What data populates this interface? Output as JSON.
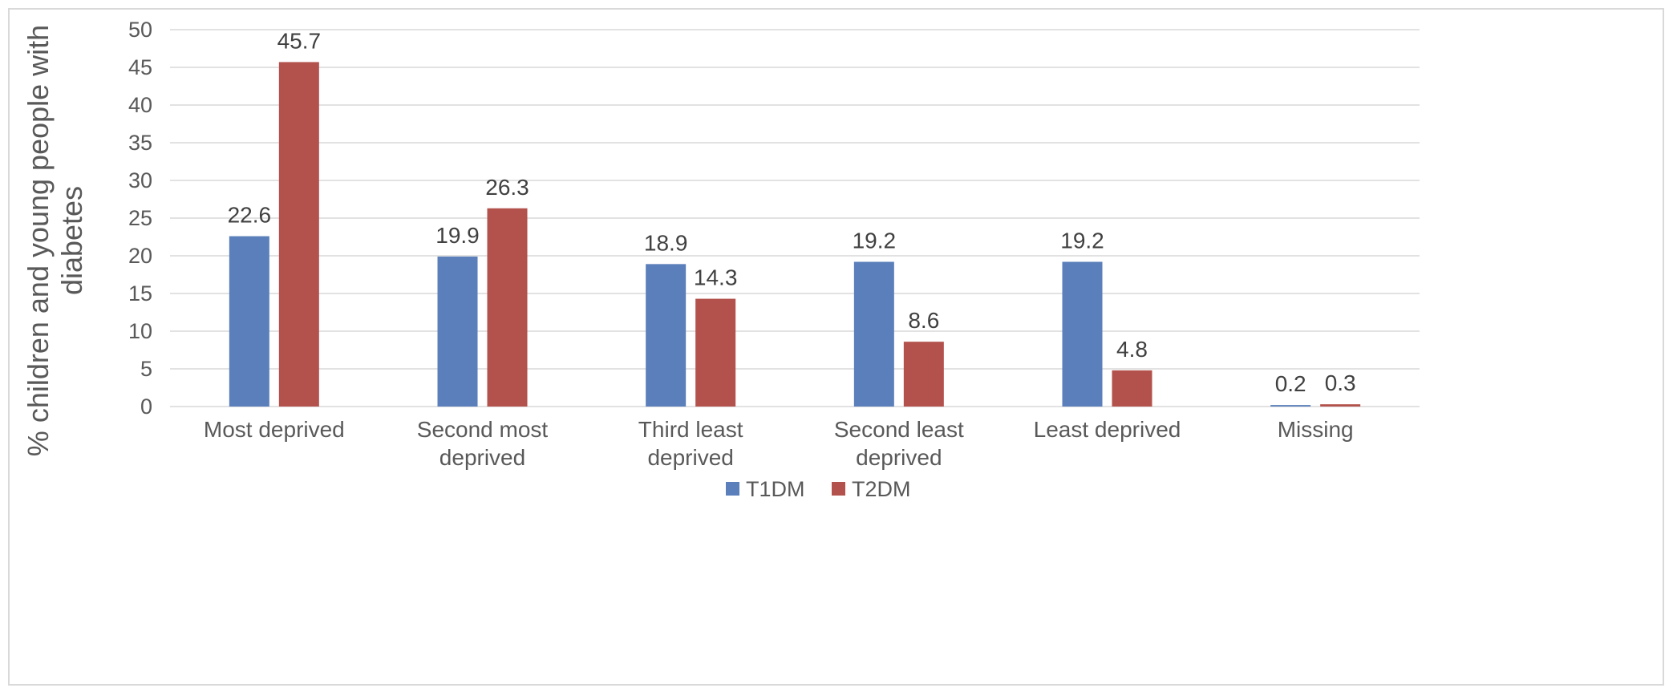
{
  "chart_data": {
    "type": "bar",
    "categories": [
      [
        "Most deprived"
      ],
      [
        "Second most",
        "deprived"
      ],
      [
        "Third least",
        "deprived"
      ],
      [
        "Second least",
        "deprived"
      ],
      [
        "Least deprived"
      ],
      [
        "Missing"
      ]
    ],
    "series": [
      {
        "name": "T1DM",
        "color": "#5a7fba",
        "values": [
          22.6,
          19.9,
          18.9,
          19.2,
          19.2,
          0.2
        ],
        "labels": [
          "22.6",
          "19.9",
          "18.9",
          "19.2",
          "19.2",
          "0.2"
        ]
      },
      {
        "name": "T2DM",
        "color": "#b3524c",
        "values": [
          45.7,
          26.3,
          14.3,
          8.6,
          4.8,
          0.3
        ],
        "labels": [
          "45.7",
          "26.3",
          "14.3",
          "8.6",
          "4.8",
          "0.3"
        ]
      }
    ],
    "title": "",
    "xlabel": "",
    "ylabel": [
      "% children and young people with",
      "diabetes"
    ],
    "ylim": [
      0,
      50
    ],
    "yticks": [
      0,
      5,
      10,
      15,
      20,
      25,
      30,
      35,
      40,
      45,
      50
    ],
    "grid": true,
    "legend_position": "bottom-center",
    "gridline_color": "#d9d9d9"
  }
}
